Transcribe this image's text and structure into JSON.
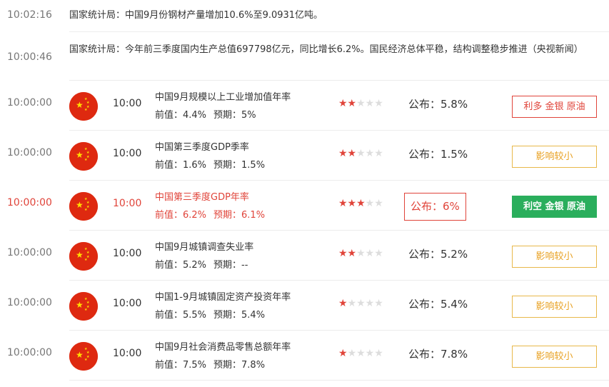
{
  "news": [
    {
      "time": "10:02:16",
      "text": "国家统计局：中国9月份钢材产量增加10.6%至9.0931亿吨。"
    },
    {
      "time": "10:00:46",
      "text": "国家统计局：今年前三季度国内生产总值697798亿元，同比增长6.2%。国民经济总体平稳，结构调整稳步推进（央视新闻）"
    }
  ],
  "events": [
    {
      "time": "10:00:00",
      "pub_time": "10:00",
      "title": "中国9月规模以上工业增加值年率",
      "prev": "前值：4.4%",
      "forecast": "预期：5%",
      "stars": "2",
      "published": "公布：5.8%",
      "impact": "利多 金银 原油"
    },
    {
      "time": "10:00:00",
      "pub_time": "10:00",
      "title": "中国第三季度GDP季率",
      "prev": "前值：1.6%",
      "forecast": "预期：1.5%",
      "stars": "2",
      "published": "公布：1.5%",
      "impact": "影响较小"
    },
    {
      "time": "10:00:00",
      "pub_time": "10:00",
      "title": "中国第三季度GDP年率",
      "prev": "前值：6.2%",
      "forecast": "预期：6.1%",
      "stars": "3",
      "published": "公布：6%",
      "impact": "利空 金银 原油"
    },
    {
      "time": "10:00:00",
      "pub_time": "10:00",
      "title": "中国9月城镇调查失业率",
      "prev": "前值：5.2%",
      "forecast": "预期：--",
      "stars": "2",
      "published": "公布：5.2%",
      "impact": "影响较小"
    },
    {
      "time": "10:00:00",
      "pub_time": "10:00",
      "title": "中国1-9月城镇固定资产投资年率",
      "prev": "前值：5.5%",
      "forecast": "预期：5.4%",
      "stars": "1",
      "published": "公布：5.4%",
      "impact": "影响较小"
    },
    {
      "time": "10:00:00",
      "pub_time": "10:00",
      "title": "中国9月社会消费品零售总额年率",
      "prev": "前值：7.5%",
      "forecast": "预期：7.8%",
      "stars": "1",
      "published": "公布：7.8%",
      "impact": "影响较小"
    }
  ],
  "icons": {
    "flag": "china-flag-icon",
    "star": "star-icon"
  },
  "colors": {
    "bullish": "#e0443a",
    "bearish": "#2aae5c",
    "neutral": "#e8a020",
    "highlight": "#e0443a"
  }
}
